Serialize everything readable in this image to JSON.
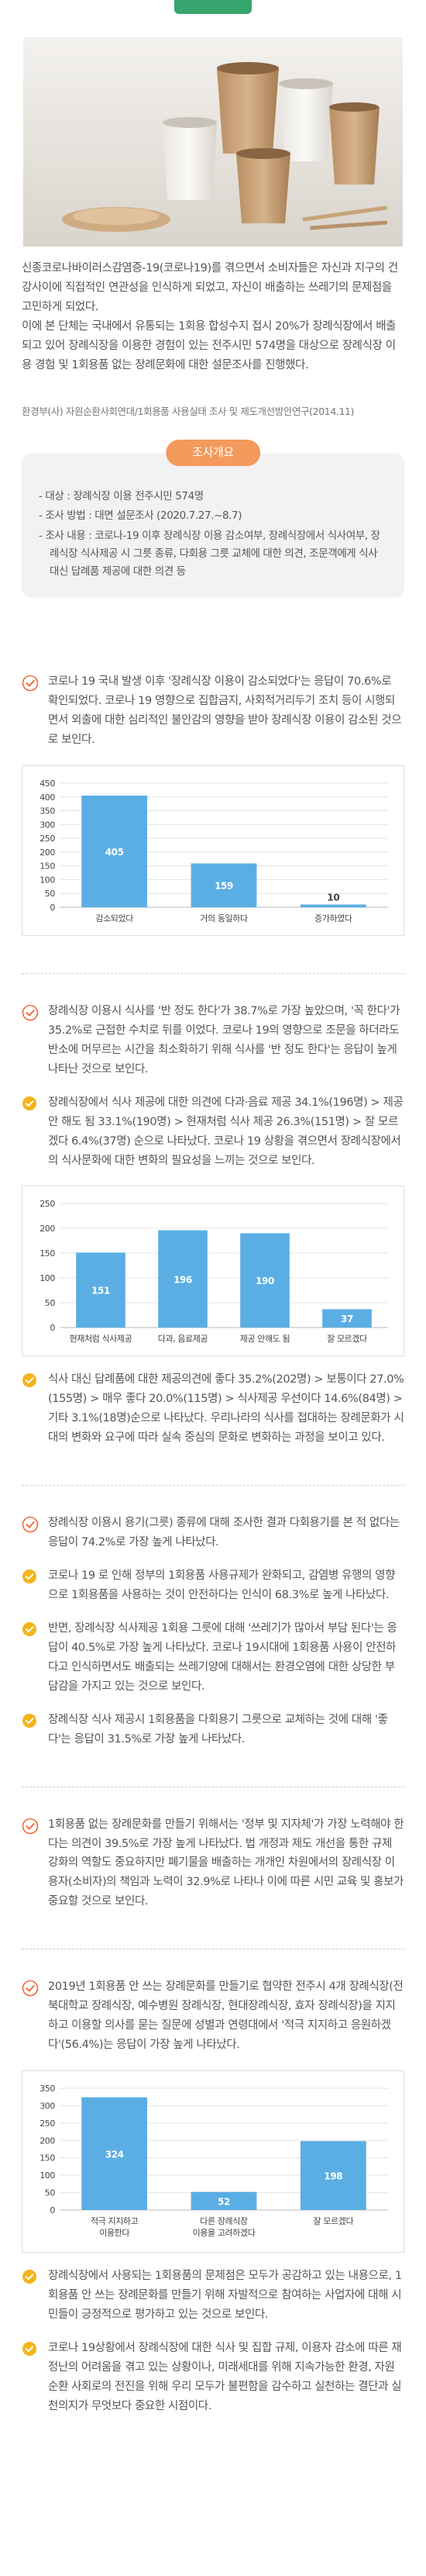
{
  "intro": {
    "paragraphs": [
      "신종코로나바이러스감염증-19(코로나19)를 겪으면서 소비자들은 자신과 지구의 건강사이에 직접적인 연관성을 인식하게 되었고, 자신이 배출하는 쓰레기의 문제점을 고민하게 되었다.",
      "이에 본 단체는 국내에서 유통되는 1회용 합성수지 접시 20%가 장례식장에서 배출되고 있어 장례식장을 이용한 경험이 있는 전주시민 574명을 대상으로 장례식장 이용 경험 및 1회용품 없는 장례문화에 대한 설문조사를 진행했다."
    ],
    "source": "환경부(사) 자원순환사회연대/1회용품 사용실태 조사 및 제도개선방안연구(2014.11)"
  },
  "summary": {
    "title": "조사개요",
    "items": [
      "- 대상 : 장례식장 이용 전주시민 574명",
      "- 조사 방법 : 대면 설문조사 (2020.7.27.~8.7)",
      "- 조사 내용 : 코로나-19 이후 장례식장 이용 감소여부, 장례식장에서 식사여부, 장례식장 식사제공 시 그릇 종류, 다회용 그릇 교체에 대한 의견, 조문객에게 식사 대신 답례품 제공에 대한 의견 등"
    ]
  },
  "findings": [
    {
      "text": "코로나 19 국내 발생 이후 '장례식장 이용이 감소되었다'는 응답이 70.6%로 확인되었다. 코로나 19 영향으로 집합금지, 사회적거리두기 조치 등이 시행되면서 외출에 대한 심리적인 불안감의 영향을 받아 장례식장 이용이 감소된 것으로 보인다.",
      "notes": []
    },
    {
      "text": "장례식장 이용시 식사를 '반 정도 한다'가 38.7%로 가장 높았으며, '꼭 한다'가 35.2%로 근접한 수치로 뒤를 이었다. 코로나 19의 영향으로 조문을 하더라도 반소에 머무르는 시간을 최소화하기 위해 식사를 '반 정도 한다'는 응답이 높게 나타난 것으로 보인다.",
      "notes": [
        "장례식장에서 식사 제공에 대한 의견에 다과·음료 제공 34.1%(196명) > 제공 안 해도 됨 33.1%(190명) > 현재처럼 식사 제공 26.3%(151명) > 잘 모르겠다 6.4%(37명) 순으로 나타났다. 코로나 19 상황을 겪으면서 장례식장에서의 식사문화에 대한 변화의 필요성을 느끼는 것으로 보인다.",
        "식사 대신 답례품에 대한 제공의견에 좋다 35.2%(202명) > 보통이다 27.0%(155명) > 매우 좋다 20.0%(115명) > 식사제공 우선이다 14.6%(84명) > 기타 3.1%(18명)순으로 나타났다. 우리나라의 식사를 접대하는 장례문화가 시대의 변화와 요구에 따라 실속 중심의 문화로 변화하는 과정을 보이고 있다."
      ]
    },
    {
      "text": "장례식장 이용시 용기(그릇) 종류에 대해 조사한 결과 다회용기를 본 적 없다는 응답이 74.2%로 가장 높게 나타났다.",
      "notes": [
        "코로나 19 로 인해 정부의 1회용품 사용규제가 완화되고, 감염병 유행의 영향으로 1회용품을 사용하는 것이 안전하다는 인식이 68.3%로 높게 나타났다.",
        "반면, 장례식장 식사제공 1회용 그릇에 대해 '쓰레기가 많아서 부담 된다'는 응답이 40.5%로 가장 높게 나타났다. 코로나 19시대에 1회용품 사용이 안전하다고 인식하면서도 배출되는 쓰레기양에 대해서는 환경오염에 대한 상당한 부담감을 가지고 있는 것으로 보인다.",
        "장례식장 식사 제공시 1회용품을 다회용기 그릇으로 교체하는 것에 대해 '좋다'는 응답이 31.5%로 가장 높게 나타났다."
      ]
    },
    {
      "text": "1회용품 없는 장례문화를 만들기 위해서는 '정부 및 지자체'가 가장 노력해야 한다는 의견이 39.5%로 가장 높게 나타났다. 법 개정과 제도 개선을 통한 규제 강화의 역할도 중요하지만 폐기물을 배출하는 개개인 차원에서의 장례식장 이용자(소비자)의 책임과 노력이 32.9%로 나타나 이에 따른 시민 교육 및 홍보가 중요할 것으로 보인다.",
      "notes": []
    },
    {
      "text": "2019년 1회용품 안 쓰는 장례문화를 만들기로 협약한 전주시 4개 장례식장(전북대학교 장례식장, 예수병원 장례식장, 현대장례식장, 효자 장례식장)을 지지하고 이용할 의사를 묻는 질문에 성별과 연령대에서 '적극 지지하고 응원하겠다'(56.4%)는 응답이 가장 높게 나타났다.",
      "notes": [
        "장례식장에서 사용되는 1회용품의 문제점은 모두가 공감하고 있는 내용으로, 1회용품 안 쓰는 장례문화를 만들기 위해 자발적으로 참여하는 사업자에 대해 시민들이 긍정적으로 평가하고 있는 것으로 보인다.",
        "코로나 19상황에서 장례식장에 대한 식사 및 집합 규제, 이용자 감소에 따른 재정난의 어려움을 겪고 있는 상황이나, 미래세대를 위해 지속가능한 환경, 자원순환 사회로의 전진을 위해 우리 모두가 불편함을 감수하고 실천하는 결단과 실천의지가 무엇보다 중요한 시점이다."
      ]
    }
  ],
  "chart_data": [
    {
      "type": "bar",
      "categories": [
        "감소되었다",
        "거의 동일하다",
        "증가하였다"
      ],
      "values": [
        405,
        159,
        10
      ],
      "color": "#5aaee3",
      "ylim": [
        0,
        450
      ],
      "yticks": [
        0,
        50,
        100,
        150,
        200,
        250,
        300,
        350,
        400,
        450
      ],
      "grid": true
    },
    {
      "type": "bar",
      "categories": [
        "현재처럼 식사제공",
        "다과, 음료제공",
        "제공 안해도 됨",
        "잘 모르겠다"
      ],
      "values": [
        151,
        196,
        190,
        37
      ],
      "color": "#5aaee3",
      "ylim": [
        0,
        250
      ],
      "yticks": [
        0,
        50,
        100,
        150,
        200,
        250
      ],
      "grid": true
    },
    {
      "type": "bar",
      "categories": [
        "적극 지지하고\n이용한다",
        "다른 장례식장\n이용을 고려하겠다",
        "잘 모르겠다"
      ],
      "values": [
        324,
        52,
        198
      ],
      "color": "#5aaee3",
      "ylim": [
        0,
        350
      ],
      "yticks": [
        0,
        50,
        100,
        150,
        200,
        250,
        300,
        350
      ],
      "grid": true
    }
  ]
}
